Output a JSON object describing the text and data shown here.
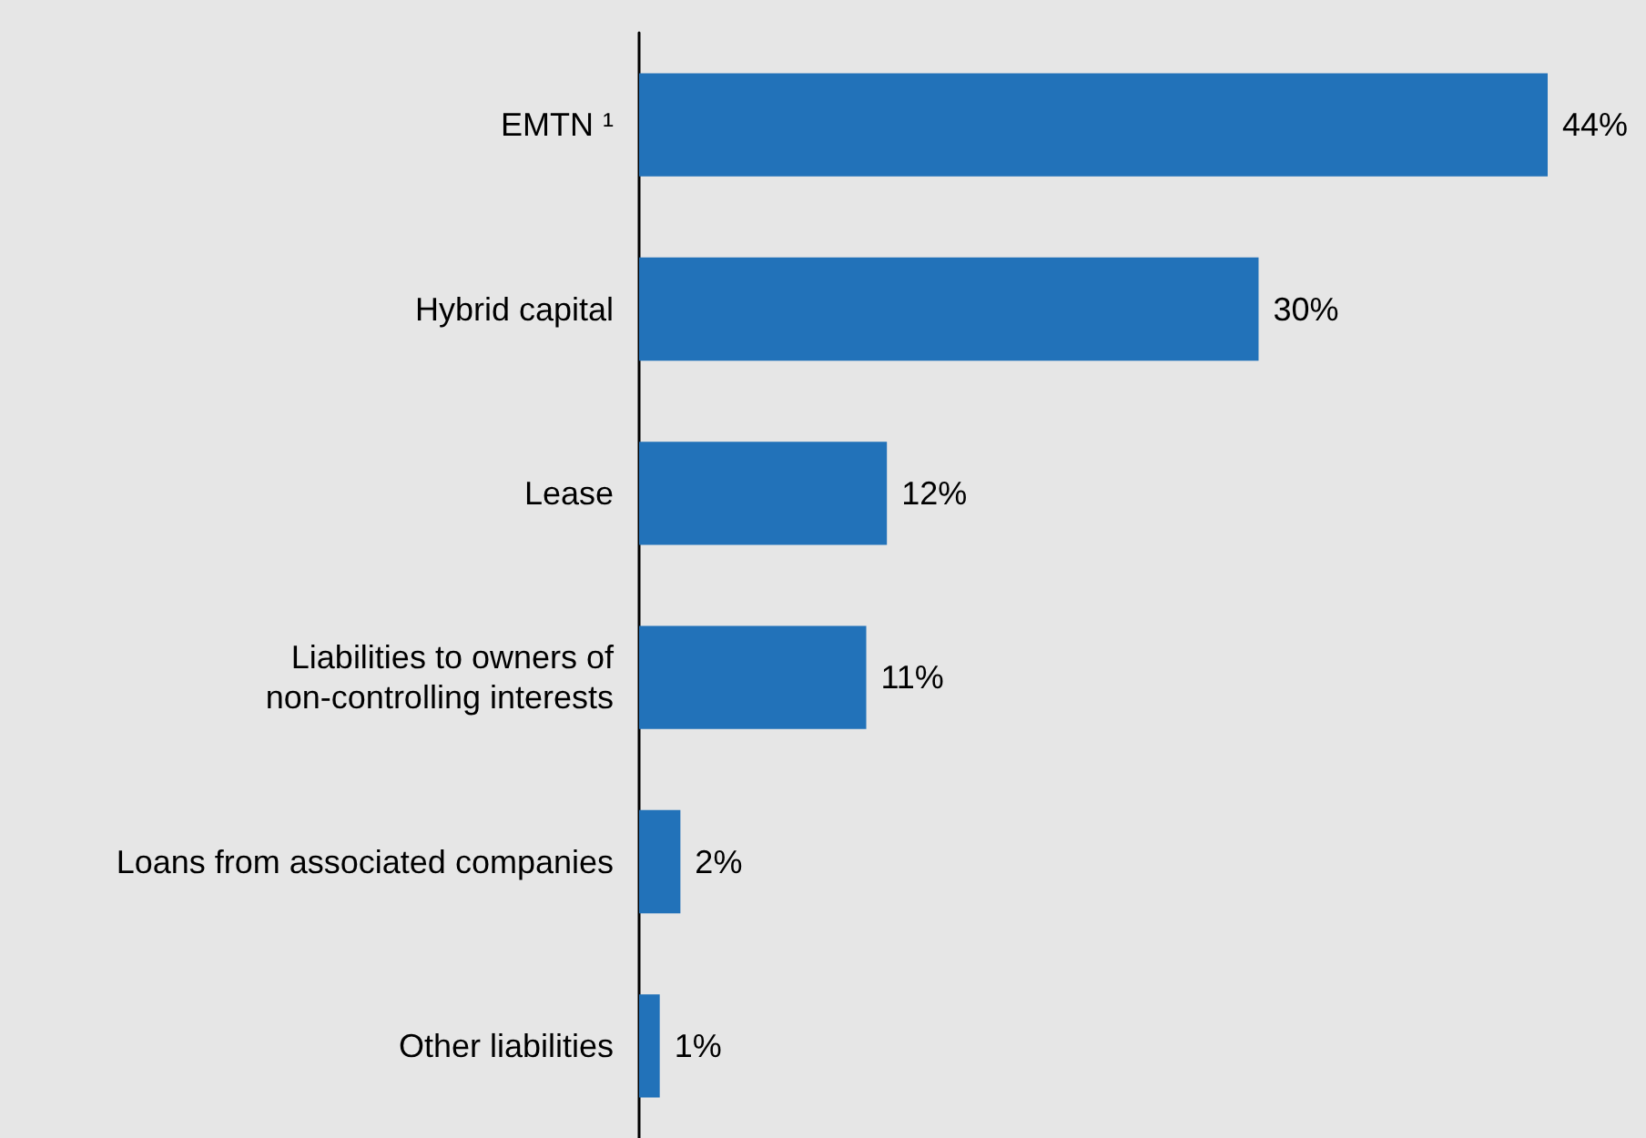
{
  "chart_data": {
    "type": "bar",
    "orientation": "horizontal",
    "categories": [
      "EMTN ¹",
      "Hybrid capital",
      "Lease",
      "Liabilities to owners of\nnon-controlling interests",
      "Loans from associated companies",
      "Other liabilities"
    ],
    "values": [
      44,
      30,
      12,
      11,
      2,
      1
    ],
    "value_labels": [
      "44%",
      "30%",
      "12%",
      "11%",
      "2%",
      "1%"
    ],
    "color": "#2272b9",
    "tick_labels": "y"
  }
}
